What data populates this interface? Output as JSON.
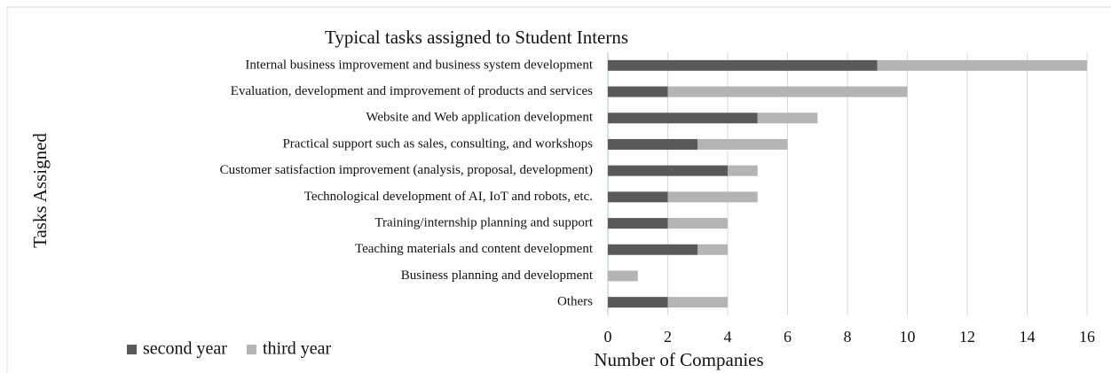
{
  "chart_data": {
    "type": "stacked-barh",
    "title": "Typical tasks assigned to Student Interns",
    "x_label": "Number of Companies",
    "y_label": "Tasks Assigned",
    "categories": [
      "Internal business improvement and business system development",
      "Evaluation, development and improvement of products and services",
      "Website and Web application development",
      "Practical support such as sales, consulting, and workshops",
      "Customer satisfaction improvement (analysis, proposal, development)",
      "Technological development of AI, IoT and robots, etc.",
      "Training/internship planning and support",
      "Teaching materials and content development",
      "Business planning and development",
      "Others"
    ],
    "series": [
      {
        "name": "second year",
        "color": "#595959",
        "values": [
          9,
          2,
          5,
          3,
          4,
          2,
          2,
          3,
          0,
          2
        ]
      },
      {
        "name": "third year",
        "color": "#b4b4b4",
        "values": [
          7,
          8,
          2,
          3,
          1,
          3,
          2,
          1,
          1,
          2
        ]
      }
    ],
    "xlim": [
      0,
      16
    ],
    "xticks": [
      0,
      2,
      4,
      6,
      8,
      10,
      12,
      14,
      16
    ],
    "grid": true,
    "legend": "bottom-left"
  }
}
